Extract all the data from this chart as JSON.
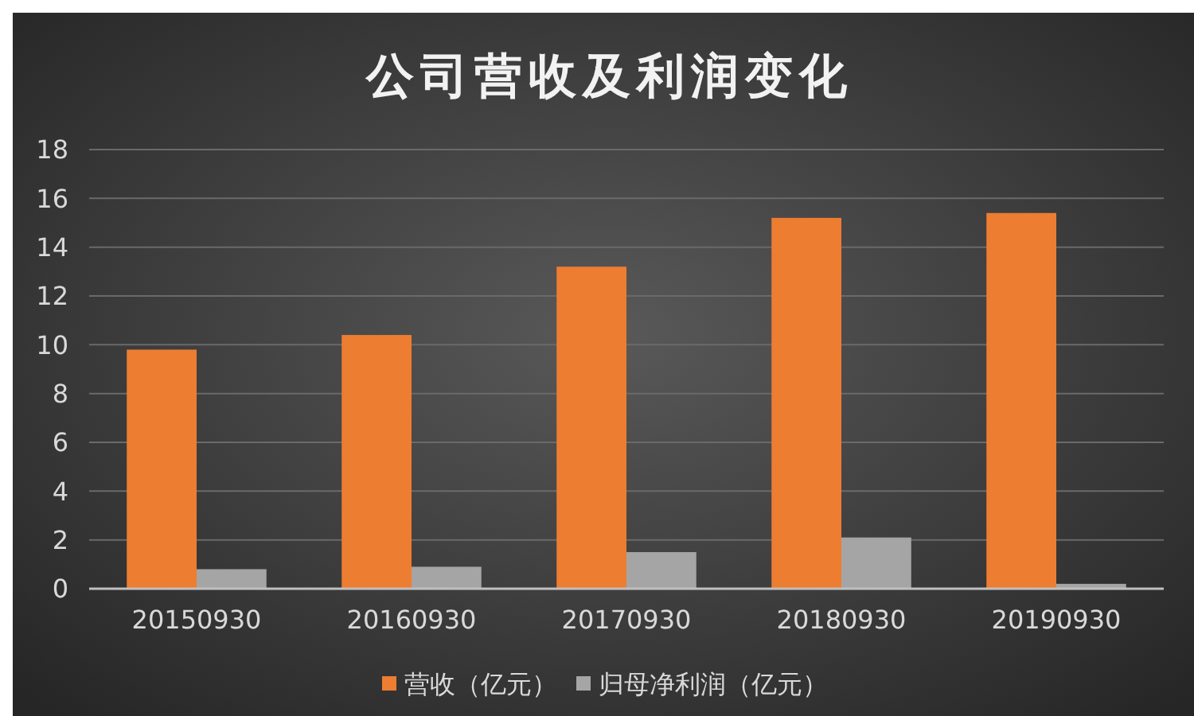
{
  "chart_data": {
    "type": "bar",
    "title": "公司营收及利润变化",
    "categories": [
      "20150930",
      "20160930",
      "20170930",
      "20180930",
      "20190930"
    ],
    "series": [
      {
        "name": "营收（亿元）",
        "color": "#ed7d31",
        "values": [
          9.8,
          10.4,
          13.2,
          15.2,
          15.4
        ]
      },
      {
        "name": "归母净利润（亿元）",
        "color": "#a5a5a5",
        "values": [
          0.8,
          0.9,
          1.5,
          2.1,
          0.2
        ]
      }
    ],
    "ylim": [
      0,
      18
    ],
    "yticks": [
      0,
      2,
      4,
      6,
      8,
      10,
      12,
      14,
      16,
      18
    ],
    "grid": "y",
    "legend": "bottom"
  }
}
